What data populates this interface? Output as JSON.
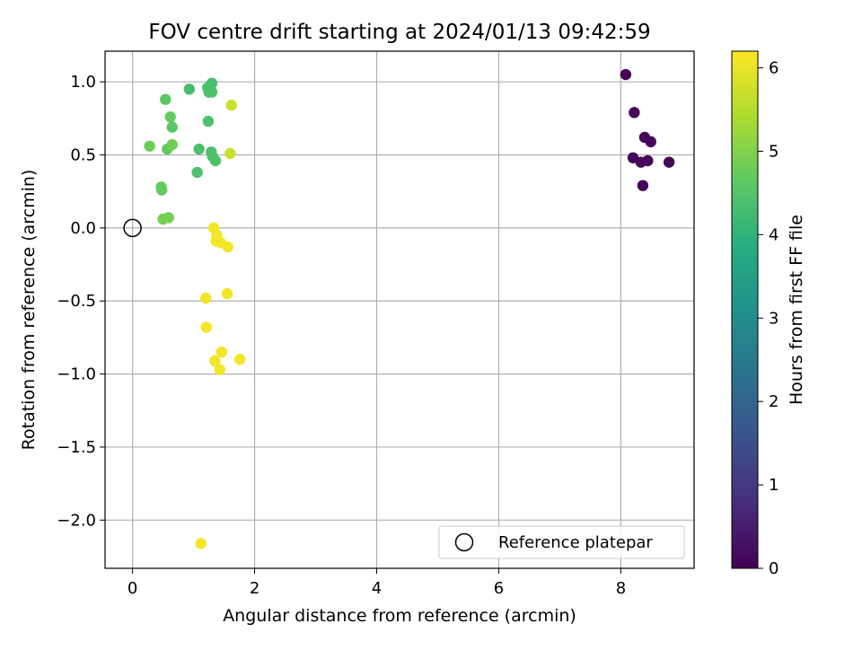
{
  "chart_data": {
    "type": "scatter",
    "title": "FOV centre drift starting at 2024/01/13 09:42:59",
    "xlabel": "Angular distance from reference (arcmin)",
    "ylabel": "Rotation from reference (arcmin)",
    "xlim": [
      -0.45,
      9.2
    ],
    "ylim": [
      -2.33,
      1.21
    ],
    "xticks": [
      0,
      2,
      4,
      6,
      8
    ],
    "xtick_labels": [
      "0",
      "2",
      "4",
      "6",
      "8"
    ],
    "yticks": [
      -2.0,
      -1.5,
      -1.0,
      -0.5,
      0.0,
      0.5,
      1.0
    ],
    "ytick_labels": [
      "−2.0",
      "−1.5",
      "−1.0",
      "−0.5",
      "0.0",
      "0.5",
      "1.0"
    ],
    "grid": true,
    "colormap": "viridis",
    "colorbar": {
      "label": "Hours from first FF file",
      "range": [
        0,
        6.2
      ],
      "ticks": [
        0,
        1,
        2,
        3,
        4,
        5,
        6
      ],
      "tick_labels": [
        "0",
        "1",
        "2",
        "3",
        "4",
        "5",
        "6"
      ]
    },
    "legend": {
      "placement": "lower-right",
      "entries": [
        {
          "label": "Reference platepar",
          "marker": "open-circle",
          "color": "#000000"
        }
      ]
    },
    "reference_point": {
      "x": 0,
      "y": 0
    },
    "series": [
      {
        "points": [
          {
            "x": 8.08,
            "y": 1.05,
            "c": 0.0
          },
          {
            "x": 8.22,
            "y": 0.79,
            "c": 0.1
          },
          {
            "x": 8.39,
            "y": 0.62,
            "c": 0.1
          },
          {
            "x": 8.49,
            "y": 0.59,
            "c": 0.1
          },
          {
            "x": 8.2,
            "y": 0.48,
            "c": 0.1
          },
          {
            "x": 8.33,
            "y": 0.45,
            "c": 0.1
          },
          {
            "x": 8.44,
            "y": 0.46,
            "c": 0.1
          },
          {
            "x": 8.79,
            "y": 0.45,
            "c": 0.1
          },
          {
            "x": 8.36,
            "y": 0.29,
            "c": 0.1
          },
          {
            "x": 1.3,
            "y": 0.99,
            "c": 4.3
          },
          {
            "x": 0.93,
            "y": 0.95,
            "c": 4.3
          },
          {
            "x": 1.23,
            "y": 0.96,
            "c": 4.4
          },
          {
            "x": 1.25,
            "y": 0.93,
            "c": 4.4
          },
          {
            "x": 1.3,
            "y": 0.93,
            "c": 4.4
          },
          {
            "x": 1.24,
            "y": 0.73,
            "c": 4.4
          },
          {
            "x": 1.29,
            "y": 0.52,
            "c": 4.4
          },
          {
            "x": 1.31,
            "y": 0.49,
            "c": 4.4
          },
          {
            "x": 1.36,
            "y": 0.46,
            "c": 4.4
          },
          {
            "x": 1.09,
            "y": 0.54,
            "c": 4.4
          },
          {
            "x": 1.06,
            "y": 0.38,
            "c": 4.4
          },
          {
            "x": 0.54,
            "y": 0.88,
            "c": 4.6
          },
          {
            "x": 0.62,
            "y": 0.76,
            "c": 4.7
          },
          {
            "x": 0.65,
            "y": 0.69,
            "c": 4.6
          },
          {
            "x": 0.28,
            "y": 0.56,
            "c": 4.8
          },
          {
            "x": 0.57,
            "y": 0.54,
            "c": 4.7
          },
          {
            "x": 0.65,
            "y": 0.57,
            "c": 4.8
          },
          {
            "x": 0.47,
            "y": 0.28,
            "c": 4.7
          },
          {
            "x": 0.48,
            "y": 0.26,
            "c": 4.7
          },
          {
            "x": 0.5,
            "y": 0.06,
            "c": 4.9
          },
          {
            "x": 0.59,
            "y": 0.07,
            "c": 4.9
          },
          {
            "x": 1.62,
            "y": 0.84,
            "c": 5.7
          },
          {
            "x": 1.6,
            "y": 0.51,
            "c": 5.7
          },
          {
            "x": 1.33,
            "y": 0.0,
            "c": 6.1
          },
          {
            "x": 1.38,
            "y": -0.05,
            "c": 6.1
          },
          {
            "x": 1.37,
            "y": -0.09,
            "c": 6.1
          },
          {
            "x": 1.44,
            "y": -0.1,
            "c": 6.1
          },
          {
            "x": 1.56,
            "y": -0.13,
            "c": 6.1
          },
          {
            "x": 1.2,
            "y": -0.48,
            "c": 6.1
          },
          {
            "x": 1.55,
            "y": -0.45,
            "c": 6.1
          },
          {
            "x": 1.21,
            "y": -0.68,
            "c": 6.1
          },
          {
            "x": 1.46,
            "y": -0.85,
            "c": 6.1
          },
          {
            "x": 1.35,
            "y": -0.91,
            "c": 6.1
          },
          {
            "x": 1.76,
            "y": -0.9,
            "c": 6.1
          },
          {
            "x": 1.43,
            "y": -0.97,
            "c": 6.1
          },
          {
            "x": 1.12,
            "y": -2.16,
            "c": 6.1
          }
        ]
      }
    ]
  }
}
